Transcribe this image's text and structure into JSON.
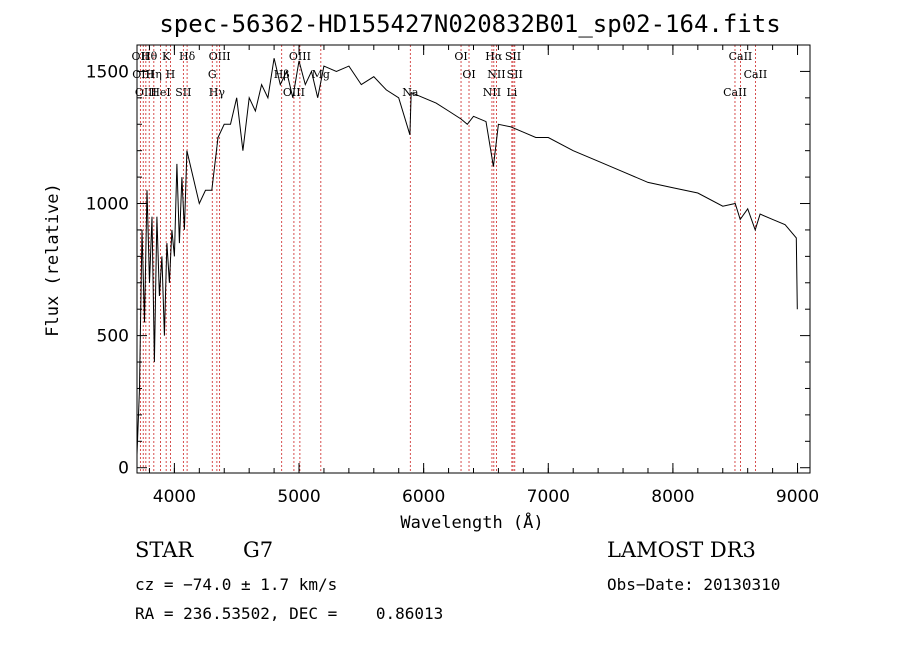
{
  "chart_data": {
    "type": "line",
    "title": "spec-56362-HD155427N020832B01_sp02-164.fits",
    "xlabel": "Wavelength (Å)",
    "ylabel": "Flux (relative)",
    "xlim": [
      3700,
      9100
    ],
    "ylim": [
      -20,
      1600
    ],
    "xticks": [
      4000,
      5000,
      6000,
      7000,
      8000,
      9000
    ],
    "yticks": [
      0,
      500,
      1000,
      1500
    ],
    "xtick_labels": [
      "4000",
      "5000",
      "6000",
      "7000",
      "8000",
      "9000"
    ],
    "ytick_labels": [
      "0",
      "500",
      "1000",
      "1500"
    ],
    "series": [
      {
        "name": "spectrum",
        "x": [
          3700,
          3720,
          3740,
          3760,
          3780,
          3800,
          3820,
          3840,
          3860,
          3880,
          3900,
          3920,
          3940,
          3960,
          3980,
          4000,
          4020,
          4040,
          4060,
          4080,
          4100,
          4150,
          4200,
          4250,
          4300,
          4350,
          4400,
          4450,
          4500,
          4550,
          4600,
          4650,
          4700,
          4750,
          4800,
          4850,
          4900,
          4950,
          5000,
          5050,
          5100,
          5150,
          5200,
          5300,
          5400,
          5500,
          5600,
          5700,
          5800,
          5890,
          5900,
          6000,
          6100,
          6200,
          6300,
          6350,
          6400,
          6500,
          6560,
          6600,
          6700,
          6800,
          6900,
          7000,
          7200,
          7400,
          7600,
          7800,
          8000,
          8200,
          8400,
          8500,
          8540,
          8600,
          8660,
          8700,
          8800,
          8900,
          8990,
          8998
        ],
        "y": [
          50,
          300,
          900,
          550,
          1050,
          700,
          950,
          400,
          950,
          650,
          800,
          500,
          850,
          700,
          900,
          800,
          1150,
          850,
          1100,
          900,
          1200,
          1100,
          1000,
          1050,
          1050,
          1250,
          1300,
          1300,
          1400,
          1200,
          1400,
          1350,
          1450,
          1400,
          1550,
          1450,
          1500,
          1400,
          1540,
          1450,
          1500,
          1400,
          1520,
          1500,
          1520,
          1450,
          1480,
          1430,
          1400,
          1260,
          1420,
          1400,
          1380,
          1350,
          1320,
          1300,
          1330,
          1310,
          1140,
          1300,
          1290,
          1270,
          1250,
          1250,
          1200,
          1160,
          1120,
          1080,
          1060,
          1040,
          990,
          1000,
          940,
          980,
          900,
          960,
          940,
          920,
          870,
          600
        ]
      }
    ],
    "lines": [
      {
        "name": "OII",
        "x": 3727
      },
      {
        "name": "OIII",
        "x": 3750
      },
      {
        "name": "OIII",
        "x": 3771
      },
      {
        "name": "Hθ",
        "x": 3798
      },
      {
        "name": "Hη",
        "x": 3835
      },
      {
        "name": "HeI",
        "x": 3889
      },
      {
        "name": "K",
        "x": 3934
      },
      {
        "name": "H",
        "x": 3968
      },
      {
        "name": "SII",
        "x": 4072
      },
      {
        "name": "Hδ",
        "x": 4102
      },
      {
        "name": "G",
        "x": 4304
      },
      {
        "name": "Hγ",
        "x": 4341
      },
      {
        "name": "OIII",
        "x": 4363
      },
      {
        "name": "Hβ",
        "x": 4861
      },
      {
        "name": "OIII",
        "x": 4959
      },
      {
        "name": "OIII",
        "x": 5007
      },
      {
        "name": "Mg",
        "x": 5175
      },
      {
        "name": "Na",
        "x": 5893
      },
      {
        "name": "OI",
        "x": 6300
      },
      {
        "name": "OI",
        "x": 6364
      },
      {
        "name": "NII",
        "x": 6548
      },
      {
        "name": "Hα",
        "x": 6563
      },
      {
        "name": "NII",
        "x": 6584
      },
      {
        "name": "Li",
        "x": 6708
      },
      {
        "name": "SII",
        "x": 6717
      },
      {
        "name": "SII",
        "x": 6731
      },
      {
        "name": "CaII",
        "x": 8498
      },
      {
        "name": "CaII",
        "x": 8542
      },
      {
        "name": "CaII",
        "x": 8662
      }
    ]
  },
  "info": {
    "object_type": "STAR",
    "subclass": "G7",
    "survey": "LAMOST DR3",
    "redshift": "cz = −74.0 ± 1.7 km/s",
    "obs_date": "Obs−Date: 20130310",
    "coords": "RA = 236.53502, DEC =    0.86013"
  },
  "colors": {
    "spectrum": "#000000",
    "line_marker": "#cc2222",
    "frame": "#000000"
  }
}
